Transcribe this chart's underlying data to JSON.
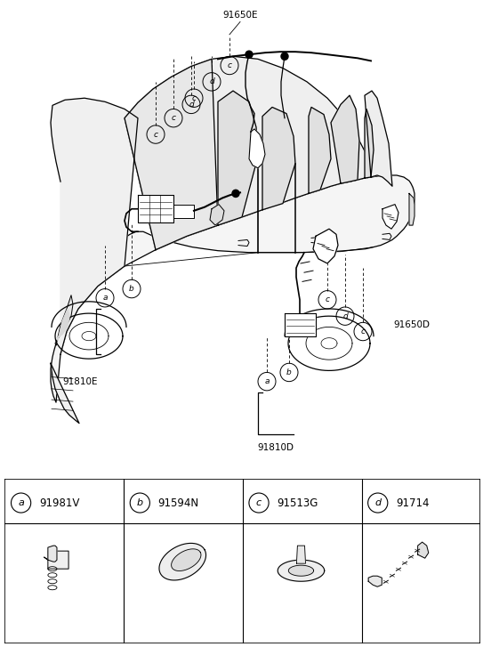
{
  "bg_color": "#ffffff",
  "line_color": "#000000",
  "fig_width": 5.43,
  "fig_height": 7.27,
  "dpi": 100,
  "part_labels": [
    "91810E",
    "91810D",
    "91650E",
    "91650D"
  ],
  "bottom_items": [
    {
      "letter": "a",
      "part": "91981V"
    },
    {
      "letter": "b",
      "part": "91594N"
    },
    {
      "letter": "c",
      "part": "91513G"
    },
    {
      "letter": "d",
      "part": "91714"
    }
  ],
  "car_outline_x": [
    95,
    105,
    118,
    138,
    168,
    205,
    248,
    285,
    318,
    345,
    368,
    388,
    405,
    418,
    428,
    438,
    448,
    458,
    467,
    475,
    482,
    488,
    493,
    497,
    500,
    502,
    503,
    503,
    502,
    500,
    497,
    493,
    488,
    483,
    477,
    470,
    461,
    451,
    440,
    427,
    412,
    395,
    375,
    352,
    328,
    305,
    282,
    260,
    240,
    222,
    207,
    192,
    180,
    170,
    162,
    155,
    148,
    143,
    138,
    133,
    128,
    120,
    112,
    103,
    96,
    89,
    82,
    76,
    71,
    68,
    66,
    65,
    65,
    66,
    68,
    71,
    75,
    80,
    86,
    92,
    95
  ],
  "car_outline_y": [
    258,
    240,
    222,
    205,
    190,
    178,
    168,
    158,
    148,
    138,
    130,
    124,
    118,
    114,
    111,
    108,
    106,
    105,
    105,
    105,
    107,
    109,
    112,
    116,
    120,
    125,
    131,
    137,
    143,
    149,
    155,
    160,
    165,
    169,
    173,
    177,
    181,
    184,
    187,
    190,
    193,
    196,
    198,
    200,
    201,
    202,
    203,
    203,
    204,
    204,
    204,
    204,
    204,
    204,
    203,
    202,
    200,
    198,
    196,
    193,
    190,
    185,
    280,
    278,
    275,
    270,
    263,
    255,
    248,
    242,
    237,
    233,
    230,
    227,
    224,
    223,
    222,
    222,
    223,
    224,
    258
  ]
}
